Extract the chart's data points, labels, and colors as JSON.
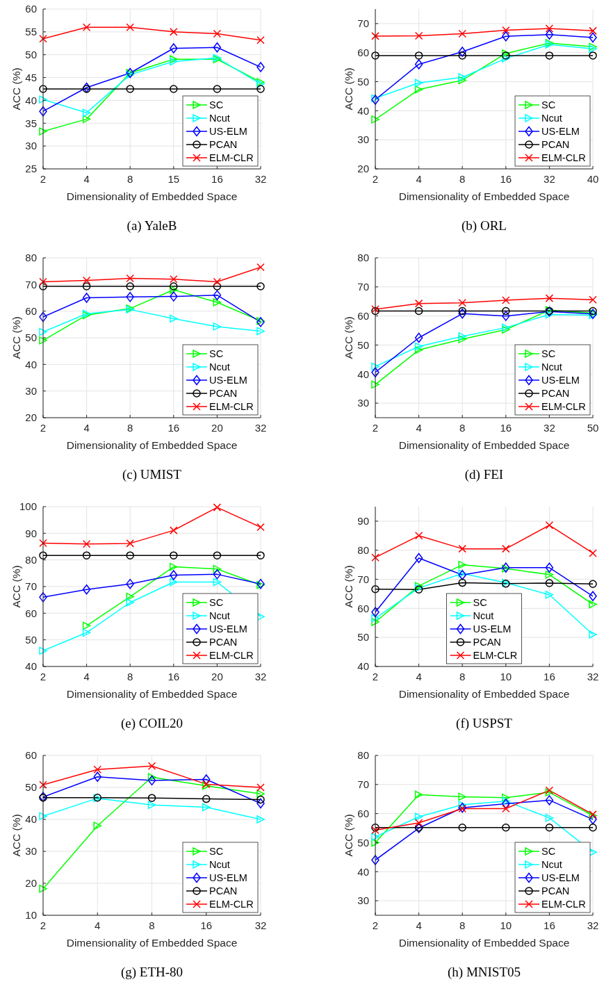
{
  "chart_data": [
    {
      "type": "line",
      "title": "(a)  YaleB",
      "xlabel": "Dimensionality of Embedded Space",
      "ylabel": "ACC (%)",
      "categories": [
        "2",
        "4",
        "8",
        "15",
        "16",
        "32"
      ],
      "ylim": [
        25,
        60
      ],
      "yticks": [
        25,
        30,
        35,
        40,
        45,
        50,
        55,
        60
      ],
      "grid": true,
      "legend": "bottom right",
      "series": [
        {
          "name": "SC",
          "color": "#00ff00",
          "marker": "triangle",
          "values": [
            33.2,
            35.9,
            46,
            49,
            49,
            44
          ]
        },
        {
          "name": "Ncut",
          "color": "#00ffff",
          "marker": "triangle",
          "values": [
            40.2,
            37.3,
            45.6,
            48.5,
            49.3,
            43.6
          ]
        },
        {
          "name": "US-ELM",
          "color": "#0000ff",
          "marker": "diamond",
          "values": [
            37.6,
            42.8,
            46,
            51.4,
            51.6,
            47.3
          ]
        },
        {
          "name": "PCAN",
          "color": "#000000",
          "marker": "circle",
          "values": [
            42.5,
            42.5,
            42.5,
            42.5,
            42.5,
            42.5
          ]
        },
        {
          "name": "ELM-CLR",
          "color": "#ff0000",
          "marker": "cross",
          "values": [
            53.5,
            56,
            56,
            55,
            54.6,
            53.2
          ]
        }
      ]
    },
    {
      "type": "line",
      "title": "(b)  ORL",
      "xlabel": "Dimensionality of Embedded Space",
      "ylabel": "ACC (%)",
      "categories": [
        "2",
        "4",
        "8",
        "16",
        "32",
        "40"
      ],
      "ylim": [
        20,
        75
      ],
      "yticks": [
        20,
        30,
        40,
        50,
        60,
        70
      ],
      "grid": true,
      "legend": "bottom right",
      "series": [
        {
          "name": "SC",
          "color": "#00ff00",
          "marker": "triangle",
          "values": [
            37,
            47.3,
            50.5,
            59.7,
            63.3,
            62
          ]
        },
        {
          "name": "Ncut",
          "color": "#00ffff",
          "marker": "triangle",
          "values": [
            44.3,
            49.6,
            51.5,
            58,
            62.8,
            61.3
          ]
        },
        {
          "name": "US-ELM",
          "color": "#0000ff",
          "marker": "diamond",
          "values": [
            43.8,
            56,
            60.3,
            65.6,
            66.2,
            65.2
          ]
        },
        {
          "name": "PCAN",
          "color": "#000000",
          "marker": "circle",
          "values": [
            59,
            59,
            59,
            59,
            59,
            59
          ]
        },
        {
          "name": "ELM-CLR",
          "color": "#ff0000",
          "marker": "cross",
          "values": [
            65.7,
            65.8,
            66.5,
            67.7,
            68.3,
            67.5
          ]
        }
      ]
    },
    {
      "type": "line",
      "title": "(c)  UMIST",
      "xlabel": "Dimensionality of Embedded Space",
      "ylabel": "ACC (%)",
      "categories": [
        "2",
        "4",
        "8",
        "16",
        "20",
        "32"
      ],
      "ylim": [
        20,
        80
      ],
      "yticks": [
        20,
        30,
        40,
        50,
        60,
        70,
        80
      ],
      "grid": true,
      "legend": "bottom right",
      "series": [
        {
          "name": "SC",
          "color": "#00ff00",
          "marker": "triangle",
          "values": [
            49,
            58.5,
            61,
            68,
            63.3,
            56.3
          ]
        },
        {
          "name": "Ncut",
          "color": "#00ffff",
          "marker": "triangle",
          "values": [
            52.2,
            59,
            60.6,
            57.2,
            54.2,
            52.5
          ]
        },
        {
          "name": "US-ELM",
          "color": "#0000ff",
          "marker": "diamond",
          "values": [
            57.8,
            65,
            65.3,
            65.5,
            66,
            55.9
          ]
        },
        {
          "name": "PCAN",
          "color": "#000000",
          "marker": "circle",
          "values": [
            69.3,
            69.3,
            69.3,
            69.3,
            69.3,
            69.3
          ]
        },
        {
          "name": "ELM-CLR",
          "color": "#ff0000",
          "marker": "cross",
          "values": [
            71,
            71.5,
            72.3,
            72,
            71,
            76.5
          ]
        }
      ]
    },
    {
      "type": "line",
      "title": "(d)  FEI",
      "xlabel": "Dimensionality of Embedded Space",
      "ylabel": "ACC (%)",
      "categories": [
        "2",
        "4",
        "8",
        "16",
        "32",
        "50"
      ],
      "ylim": [
        25,
        80
      ],
      "yticks": [
        30,
        40,
        50,
        60,
        70,
        80
      ],
      "grid": true,
      "legend": "bottom right",
      "series": [
        {
          "name": "SC",
          "color": "#00ff00",
          "marker": "triangle",
          "values": [
            36.4,
            48.3,
            52,
            55.3,
            62,
            61
          ]
        },
        {
          "name": "Ncut",
          "color": "#00ffff",
          "marker": "triangle",
          "values": [
            42.6,
            49.5,
            53,
            56,
            60.5,
            60.3
          ]
        },
        {
          "name": "US-ELM",
          "color": "#0000ff",
          "marker": "diamond",
          "values": [
            40.6,
            52.5,
            60.8,
            60,
            61.5,
            60.7
          ]
        },
        {
          "name": "PCAN",
          "color": "#000000",
          "marker": "circle",
          "values": [
            61.7,
            61.7,
            61.7,
            61.7,
            61.7,
            61.7
          ]
        },
        {
          "name": "ELM-CLR",
          "color": "#ff0000",
          "marker": "cross",
          "values": [
            62.3,
            64.3,
            64.5,
            65.4,
            66.1,
            65.6
          ]
        }
      ]
    },
    {
      "type": "line",
      "title": "(e)  COIL20",
      "xlabel": "Dimensionality of Embedded Space",
      "ylabel": "ACC (%)",
      "categories": [
        "2",
        "4",
        "8",
        "16",
        "20",
        "32"
      ],
      "ylim": [
        40,
        100
      ],
      "yticks": [
        40,
        50,
        60,
        70,
        80,
        90,
        100
      ],
      "grid": true,
      "legend": "bottom right",
      "series": [
        {
          "name": "SC",
          "color": "#00ff00",
          "marker": "triangle",
          "values": [
            null,
            55.3,
            66.2,
            77.4,
            76.6,
            70.6
          ]
        },
        {
          "name": "Ncut",
          "color": "#00ffff",
          "marker": "triangle",
          "values": [
            45.9,
            52.7,
            64,
            71.7,
            71.7,
            58.7
          ]
        },
        {
          "name": "US-ELM",
          "color": "#0000ff",
          "marker": "diamond",
          "values": [
            66,
            68.9,
            71,
            74.3,
            74.6,
            71
          ]
        },
        {
          "name": "PCAN",
          "color": "#000000",
          "marker": "circle",
          "values": [
            81.7,
            81.7,
            81.7,
            81.7,
            81.7,
            81.7
          ]
        },
        {
          "name": "ELM-CLR",
          "color": "#ff0000",
          "marker": "cross",
          "values": [
            86.3,
            86,
            86.2,
            91.1,
            99.7,
            92.3
          ]
        }
      ]
    },
    {
      "type": "line",
      "title": "(f)  USPST",
      "xlabel": "Dimensionality of Embedded Space",
      "ylabel": "ACC (%)",
      "categories": [
        "2",
        "4",
        "8",
        "10",
        "16",
        "32"
      ],
      "ylim": [
        40,
        95
      ],
      "yticks": [
        40,
        50,
        60,
        70,
        80,
        90
      ],
      "grid": true,
      "legend": "bottom",
      "series": [
        {
          "name": "SC",
          "color": "#00ff00",
          "marker": "triangle",
          "values": [
            55.3,
            67.7,
            75,
            73.7,
            71.6,
            61.4
          ]
        },
        {
          "name": "Ncut",
          "color": "#00ffff",
          "marker": "triangle",
          "values": [
            56.6,
            67,
            72,
            68.8,
            64.7,
            51
          ]
        },
        {
          "name": "US-ELM",
          "color": "#0000ff",
          "marker": "diamond",
          "values": [
            58.7,
            77.3,
            71.5,
            74,
            74,
            64.2
          ]
        },
        {
          "name": "PCAN",
          "color": "#000000",
          "marker": "circle",
          "values": [
            66.6,
            66.5,
            68.8,
            68.5,
            68.7,
            68.4
          ]
        },
        {
          "name": "ELM-CLR",
          "color": "#ff0000",
          "marker": "cross",
          "values": [
            77.5,
            85,
            80.5,
            80.5,
            88.6,
            79
          ]
        }
      ]
    },
    {
      "type": "line",
      "title": "(g)  ETH-80",
      "xlabel": "Dimensionality of Embedded Space",
      "ylabel": "ACC (%)",
      "categories": [
        "2",
        "4",
        "8",
        "16",
        "32"
      ],
      "ylim": [
        10,
        60
      ],
      "yticks": [
        10,
        20,
        30,
        40,
        50,
        60
      ],
      "grid": true,
      "legend": "bottom right",
      "series": [
        {
          "name": "SC",
          "color": "#00ff00",
          "marker": "triangle",
          "values": [
            18.3,
            38,
            53.2,
            50.5,
            48
          ]
        },
        {
          "name": "Ncut",
          "color": "#00ffff",
          "marker": "triangle",
          "values": [
            41,
            46.6,
            44.5,
            43.8,
            40
          ]
        },
        {
          "name": "US-ELM",
          "color": "#0000ff",
          "marker": "diamond",
          "values": [
            47,
            53.3,
            52.2,
            52.5,
            45
          ]
        },
        {
          "name": "PCAN",
          "color": "#000000",
          "marker": "circle",
          "values": [
            46.8,
            46.8,
            46.7,
            46.4,
            46.2
          ]
        },
        {
          "name": "ELM-CLR",
          "color": "#ff0000",
          "marker": "cross",
          "values": [
            50.8,
            55.6,
            56.7,
            51,
            50
          ]
        }
      ]
    },
    {
      "type": "line",
      "title": "(h)  MNIST05",
      "xlabel": "Dimensionality of Embedded Space",
      "ylabel": "ACC (%)",
      "categories": [
        "2",
        "4",
        "8",
        "10",
        "16",
        "32"
      ],
      "ylim": [
        25,
        80
      ],
      "yticks": [
        30,
        40,
        50,
        60,
        70,
        80
      ],
      "grid": true,
      "legend": "bottom right",
      "series": [
        {
          "name": "SC",
          "color": "#00ff00",
          "marker": "triangle",
          "values": [
            50,
            66.5,
            65.8,
            65.5,
            67.3,
            59.3
          ]
        },
        {
          "name": "Ncut",
          "color": "#00ffff",
          "marker": "triangle",
          "values": [
            52,
            58.9,
            63,
            64.3,
            58.5,
            46.7
          ]
        },
        {
          "name": "US-ELM",
          "color": "#0000ff",
          "marker": "diamond",
          "values": [
            44,
            55,
            62,
            63.4,
            64.6,
            58
          ]
        },
        {
          "name": "PCAN",
          "color": "#000000",
          "marker": "circle",
          "values": [
            55.2,
            55.2,
            55.2,
            55.2,
            55.2,
            55.2
          ]
        },
        {
          "name": "ELM-CLR",
          "color": "#ff0000",
          "marker": "cross",
          "values": [
            54.3,
            56.8,
            61.7,
            61.7,
            68,
            59.7
          ]
        }
      ]
    }
  ]
}
